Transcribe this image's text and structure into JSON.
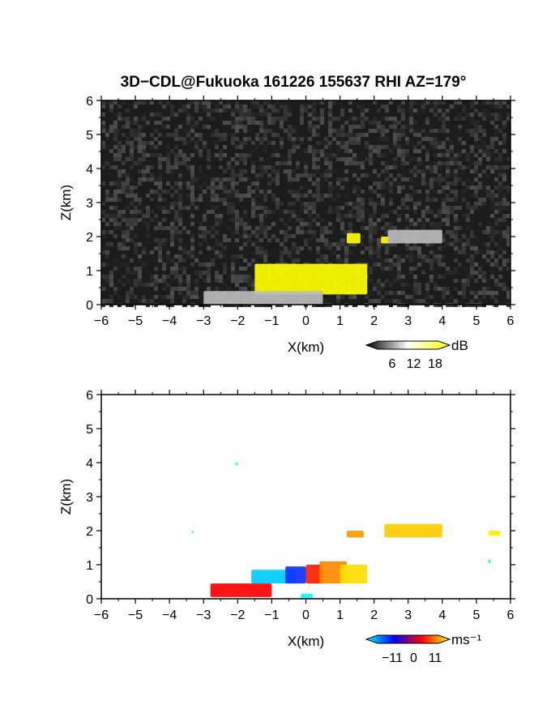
{
  "title": "3D−CDL@Fukuoka 161226 155637 RHI AZ=179°",
  "chart_data": [
    {
      "name": "snr",
      "type": "heatmap",
      "xlabel": "X(km)",
      "ylabel": "Z(km)",
      "xlim": [
        -6,
        6
      ],
      "ylim": [
        0,
        6
      ],
      "x_ticks": [
        "−6",
        "−5",
        "−4",
        "−3",
        "−2",
        "−1",
        "0",
        "1",
        "2",
        "3",
        "4",
        "5",
        "6"
      ],
      "y_ticks": [
        "0",
        "1",
        "2",
        "3",
        "4",
        "5",
        "6"
      ],
      "colorbar": {
        "unit": "dB",
        "tick_labels": [
          "6",
          "12",
          "18"
        ],
        "colors": [
          "#000000",
          "#ffffff",
          "#ffff00"
        ]
      },
      "regions": [
        {
          "label": "yellow echo low layer",
          "x": [
            -1.5,
            1.8
          ],
          "z": [
            0.3,
            1.2
          ],
          "color": "#ffff00"
        },
        {
          "label": "yellow echo patch",
          "x": [
            1.2,
            1.6
          ],
          "z": [
            1.8,
            2.1
          ],
          "color": "#ffff00"
        },
        {
          "label": "yellow echo patch",
          "x": [
            2.2,
            2.45
          ],
          "z": [
            1.8,
            2.0
          ],
          "color": "#ffff00"
        },
        {
          "label": "gray echo upper",
          "x": [
            2.4,
            4.0
          ],
          "z": [
            1.8,
            2.2
          ],
          "color": "#bbbbbb"
        },
        {
          "label": "gray echo near surface",
          "x": [
            -3.0,
            0.5
          ],
          "z": [
            0.0,
            0.4
          ],
          "color": "#bbbbbb"
        }
      ]
    },
    {
      "name": "velocity",
      "type": "heatmap",
      "xlabel": "X(km)",
      "ylabel": "Z(km)",
      "xlim": [
        -6,
        6
      ],
      "ylim": [
        0,
        6
      ],
      "x_ticks": [
        "−6",
        "−5",
        "−4",
        "−3",
        "−2",
        "−1",
        "0",
        "1",
        "2",
        "3",
        "4",
        "5",
        "6"
      ],
      "y_ticks": [
        "0",
        "1",
        "2",
        "3",
        "4",
        "5",
        "6"
      ],
      "colorbar": {
        "unit": "ms⁻¹",
        "tick_labels": [
          "−11",
          "0",
          "11"
        ],
        "colors": [
          "#00ffff",
          "#0000ff",
          "#ff0000",
          "#ffff00"
        ]
      },
      "regions": [
        {
          "label": "cyan-blue layer",
          "x": [
            -1.6,
            -0.3
          ],
          "z": [
            0.45,
            0.85
          ],
          "color": "#00ccff"
        },
        {
          "label": "blue layer",
          "x": [
            -0.6,
            0.0
          ],
          "z": [
            0.45,
            0.95
          ],
          "color": "#1030ff"
        },
        {
          "label": "red layer",
          "x": [
            0.0,
            0.5
          ],
          "z": [
            0.45,
            1.0
          ],
          "color": "#ff2000"
        },
        {
          "label": "orange layer",
          "x": [
            0.4,
            1.2
          ],
          "z": [
            0.45,
            1.1
          ],
          "color": "#ff8800"
        },
        {
          "label": "yellow layer",
          "x": [
            1.0,
            1.8
          ],
          "z": [
            0.45,
            1.0
          ],
          "color": "#ffdd00"
        },
        {
          "label": "upper orange",
          "x": [
            1.2,
            1.7
          ],
          "z": [
            1.8,
            2.0
          ],
          "color": "#ff9900"
        },
        {
          "label": "upper yellow",
          "x": [
            2.3,
            4.0
          ],
          "z": [
            1.8,
            2.2
          ],
          "color": "#ffcc00"
        },
        {
          "label": "low blue/red streak",
          "x": [
            -2.8,
            -1.0
          ],
          "z": [
            0.05,
            0.45
          ],
          "color": "#ff0000"
        },
        {
          "label": "surface cyan",
          "x": [
            -0.15,
            0.2
          ],
          "z": [
            0.0,
            0.15
          ],
          "color": "#00ffff"
        },
        {
          "label": "isolated cyan",
          "x": [
            -2.07,
            -2.0
          ],
          "z": [
            3.93,
            4.0
          ],
          "color": "#00ffff"
        },
        {
          "label": "isolated cyan",
          "x": [
            -3.35,
            -3.3
          ],
          "z": [
            1.93,
            2.0
          ],
          "color": "#00ffff"
        },
        {
          "label": "isolated cyan",
          "x": [
            5.35,
            5.42
          ],
          "z": [
            1.05,
            1.15
          ],
          "color": "#00ffff"
        },
        {
          "label": "isolated yellow",
          "x": [
            5.35,
            5.7
          ],
          "z": [
            1.85,
            2.0
          ],
          "color": "#ffee00"
        }
      ]
    }
  ]
}
